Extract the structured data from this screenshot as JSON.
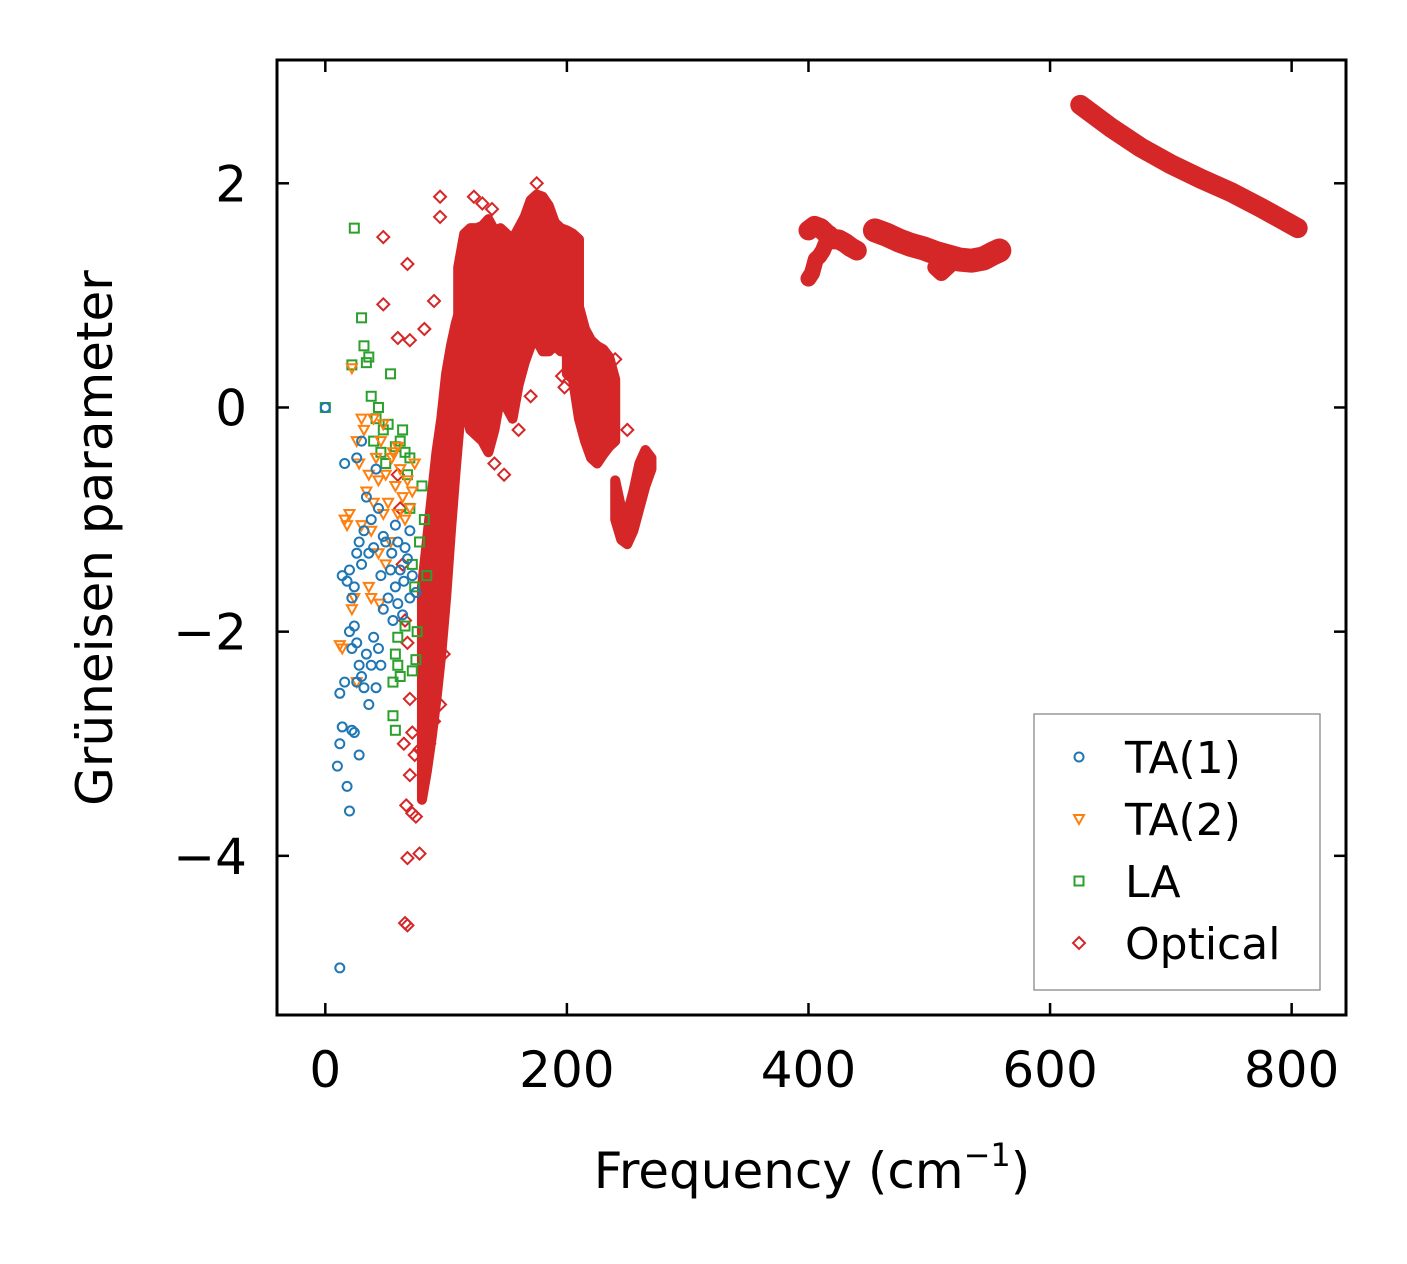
{
  "chart_data": {
    "type": "scatter",
    "title": "",
    "xlabel": "Frequency (cm",
    "xlabel_sup": "−1",
    "xlabel_end": ")",
    "ylabel": "Grüneisen parameter",
    "xlim": [
      -40,
      845
    ],
    "ylim": [
      -5.42,
      3.1
    ],
    "xticks": [
      0,
      200,
      400,
      600,
      800
    ],
    "yticks": [
      -4,
      -2,
      0,
      2
    ],
    "xtick_labels": [
      "0",
      "200",
      "400",
      "600",
      "800"
    ],
    "ytick_labels": [
      "−4",
      "−2",
      "0",
      "2"
    ],
    "grid": false,
    "legend_position": "lower-right",
    "series": [
      {
        "name": "TA(1)",
        "marker": "circle",
        "color": "#1f77b4",
        "points": [
          [
            0,
            0
          ],
          [
            12,
            -5.0
          ],
          [
            10,
            -3.2
          ],
          [
            12,
            -3.0
          ],
          [
            14,
            -2.85
          ],
          [
            16,
            -2.45
          ],
          [
            12,
            -2.55
          ],
          [
            18,
            -3.38
          ],
          [
            20,
            -3.6
          ],
          [
            22,
            -2.88
          ],
          [
            24,
            -2.9
          ],
          [
            26,
            -2.45
          ],
          [
            28,
            -3.1
          ],
          [
            20,
            -2.0
          ],
          [
            22,
            -2.15
          ],
          [
            24,
            -1.95
          ],
          [
            26,
            -2.1
          ],
          [
            28,
            -2.3
          ],
          [
            30,
            -2.4
          ],
          [
            32,
            -2.5
          ],
          [
            34,
            -2.2
          ],
          [
            36,
            -2.65
          ],
          [
            38,
            -2.3
          ],
          [
            40,
            -2.05
          ],
          [
            42,
            -2.5
          ],
          [
            44,
            -2.15
          ],
          [
            46,
            -2.3
          ],
          [
            48,
            -1.8
          ],
          [
            14,
            -1.5
          ],
          [
            16,
            -0.5
          ],
          [
            18,
            -1.55
          ],
          [
            20,
            -1.45
          ],
          [
            22,
            -1.7
          ],
          [
            24,
            -1.6
          ],
          [
            26,
            -1.3
          ],
          [
            28,
            -1.2
          ],
          [
            30,
            -1.4
          ],
          [
            32,
            -1.1
          ],
          [
            34,
            -0.8
          ],
          [
            36,
            -1.3
          ],
          [
            38,
            -1.0
          ],
          [
            40,
            -1.25
          ],
          [
            42,
            -0.55
          ],
          [
            44,
            -0.9
          ],
          [
            46,
            -1.5
          ],
          [
            48,
            -1.15
          ],
          [
            26,
            -0.45
          ],
          [
            30,
            -0.3
          ],
          [
            52,
            -1.7
          ],
          [
            55,
            -1.3
          ],
          [
            58,
            -1.6
          ],
          [
            60,
            -1.2
          ],
          [
            62,
            -1.45
          ],
          [
            65,
            -1.55
          ],
          [
            68,
            -1.35
          ],
          [
            70,
            -1.1
          ],
          [
            72,
            -1.5
          ],
          [
            75,
            -1.65
          ],
          [
            56,
            -1.9
          ],
          [
            60,
            -1.75
          ],
          [
            64,
            -1.85
          ],
          [
            50,
            -1.2
          ],
          [
            54,
            -1.45
          ],
          [
            58,
            -1.05
          ],
          [
            66,
            -1.25
          ],
          [
            70,
            -1.7
          ]
        ]
      },
      {
        "name": "TA(2)",
        "marker": "triangle-down",
        "color": "#ff7f0e",
        "points": [
          [
            12,
            -2.12
          ],
          [
            14,
            -2.15
          ],
          [
            22,
            0.35
          ],
          [
            22,
            -1.8
          ],
          [
            24,
            -1.7
          ],
          [
            26,
            -2.45
          ],
          [
            26,
            -0.3
          ],
          [
            28,
            -0.5
          ],
          [
            30,
            -1.05
          ],
          [
            30,
            -0.1
          ],
          [
            32,
            -0.2
          ],
          [
            34,
            -0.75
          ],
          [
            36,
            -0.6
          ],
          [
            38,
            -1.1
          ],
          [
            40,
            -0.85
          ],
          [
            42,
            -0.45
          ],
          [
            44,
            -1.3
          ],
          [
            46,
            -0.3
          ],
          [
            48,
            -0.95
          ],
          [
            50,
            -0.6
          ],
          [
            52,
            -0.85
          ],
          [
            54,
            -1.2
          ],
          [
            56,
            -0.4
          ],
          [
            58,
            -0.7
          ],
          [
            60,
            -0.95
          ],
          [
            62,
            -0.55
          ],
          [
            64,
            -0.8
          ],
          [
            66,
            -1.0
          ],
          [
            68,
            -0.65
          ],
          [
            70,
            -0.9
          ],
          [
            72,
            -0.75
          ],
          [
            74,
            -0.5
          ],
          [
            16,
            -1.0
          ],
          [
            18,
            -1.05
          ],
          [
            20,
            -0.95
          ],
          [
            40,
            -0.1
          ],
          [
            44,
            -0.65
          ],
          [
            48,
            -0.15
          ],
          [
            36,
            -1.6
          ],
          [
            38,
            -1.7
          ],
          [
            55,
            -0.45
          ],
          [
            60,
            -0.35
          ],
          [
            50,
            -1.4
          ],
          [
            45,
            -1.75
          ]
        ]
      },
      {
        "name": "LA",
        "marker": "square",
        "color": "#2ca02c",
        "points": [
          [
            0,
            0
          ],
          [
            24,
            1.6
          ],
          [
            30,
            0.8
          ],
          [
            32,
            0.55
          ],
          [
            34,
            0.4
          ],
          [
            36,
            0.45
          ],
          [
            38,
            0.1
          ],
          [
            22,
            0.38
          ],
          [
            40,
            -0.3
          ],
          [
            42,
            -0.1
          ],
          [
            44,
            0.0
          ],
          [
            46,
            -0.4
          ],
          [
            48,
            -0.2
          ],
          [
            50,
            -0.5
          ],
          [
            52,
            -0.15
          ],
          [
            54,
            0.3
          ],
          [
            56,
            -2.75
          ],
          [
            58,
            -2.88
          ],
          [
            60,
            -2.3
          ],
          [
            62,
            -2.4
          ],
          [
            56,
            -2.45
          ],
          [
            58,
            -2.2
          ],
          [
            60,
            -2.05
          ],
          [
            64,
            -0.2
          ],
          [
            66,
            -0.4
          ],
          [
            68,
            -0.6
          ],
          [
            70,
            -0.9
          ],
          [
            72,
            -1.4
          ],
          [
            74,
            -1.6
          ],
          [
            76,
            -2.0
          ],
          [
            78,
            -1.2
          ],
          [
            80,
            -0.7
          ],
          [
            82,
            -1.0
          ],
          [
            84,
            -1.5
          ],
          [
            75,
            -2.25
          ],
          [
            72,
            -2.35
          ],
          [
            66,
            -1.95
          ],
          [
            62,
            -0.3
          ],
          [
            58,
            -0.35
          ],
          [
            70,
            -0.45
          ]
        ]
      },
      {
        "name": "Optical",
        "marker": "diamond",
        "color": "#d62728",
        "points": [
          [
            48,
            1.52
          ],
          [
            68,
            1.28
          ],
          [
            48,
            0.92
          ],
          [
            95,
            1.88
          ],
          [
            95,
            1.7
          ],
          [
            123,
            1.88
          ],
          [
            130,
            1.82
          ],
          [
            138,
            1.77
          ],
          [
            175,
            2.0
          ],
          [
            175,
            1.82
          ],
          [
            60,
            0.62
          ],
          [
            70,
            0.6
          ],
          [
            82,
            0.7
          ],
          [
            90,
            0.95
          ],
          [
            65,
            -3.0
          ],
          [
            67,
            -3.55
          ],
          [
            70,
            -3.28
          ],
          [
            72,
            -3.62
          ],
          [
            75,
            -3.65
          ],
          [
            78,
            -3.98
          ],
          [
            68,
            -4.02
          ],
          [
            66,
            -4.6
          ],
          [
            68,
            -4.62
          ],
          [
            95,
            -2.65
          ],
          [
            98,
            -2.2
          ],
          [
            60,
            -0.6
          ],
          [
            62,
            -0.9
          ],
          [
            64,
            -1.4
          ],
          [
            66,
            -1.9
          ],
          [
            68,
            -2.1
          ],
          [
            70,
            -2.6
          ],
          [
            72,
            -2.9
          ],
          [
            74,
            -3.1
          ],
          [
            78,
            -3.05
          ],
          [
            82,
            -3.1
          ],
          [
            86,
            -3.0
          ],
          [
            90,
            -2.8
          ],
          [
            140,
            -0.5
          ],
          [
            148,
            -0.6
          ],
          [
            160,
            -0.2
          ],
          [
            170,
            0.1
          ],
          [
            196,
            0.28
          ],
          [
            198,
            0.18
          ],
          [
            210,
            0.6
          ],
          [
            215,
            0.55
          ],
          [
            225,
            0.4
          ],
          [
            240,
            0.43
          ],
          [
            250,
            -0.2
          ],
          [
            260,
            -0.6
          ]
        ]
      }
    ],
    "optical_bands": [
      {
        "x": [
          80,
          84,
          88,
          92,
          96,
          100,
          104,
          108,
          112,
          115
        ],
        "lo": [
          -3.5,
          -3.25,
          -2.95,
          -2.6,
          -2.2,
          -1.7,
          -1.1,
          -0.55,
          -0.05,
          0.25
        ],
        "hi": [
          -1.6,
          -1.2,
          -0.8,
          -0.4,
          -0.1,
          0.3,
          0.55,
          0.75,
          0.9,
          1.05
        ]
      },
      {
        "x": [
          110,
          115,
          120,
          125,
          130,
          135,
          140,
          145,
          150,
          155,
          160,
          165,
          170,
          175,
          180,
          185,
          190,
          195,
          200,
          205,
          210
        ],
        "lo": [
          -0.1,
          0.05,
          -0.2,
          -0.25,
          -0.3,
          -0.4,
          -0.2,
          0.1,
          0.0,
          -0.1,
          0.2,
          0.4,
          0.55,
          0.6,
          0.5,
          0.5,
          0.55,
          0.5,
          0.5,
          0.6,
          0.5
        ],
        "hi": [
          1.25,
          1.55,
          1.6,
          1.6,
          1.62,
          1.68,
          1.58,
          1.6,
          1.55,
          1.5,
          1.6,
          1.7,
          1.85,
          1.9,
          1.88,
          1.8,
          1.65,
          1.6,
          1.58,
          1.55,
          1.5
        ]
      },
      {
        "x": [
          200,
          205,
          210,
          215,
          220,
          225,
          230,
          235,
          240
        ],
        "lo": [
          0.3,
          0.25,
          -0.1,
          -0.3,
          -0.45,
          -0.5,
          -0.42,
          -0.35,
          -0.3
        ],
        "hi": [
          1.35,
          1.15,
          0.9,
          0.7,
          0.6,
          0.55,
          0.52,
          0.45,
          0.25
        ]
      },
      {
        "x": [
          240,
          245,
          250,
          255,
          260,
          265,
          270
        ],
        "lo": [
          -1.0,
          -1.18,
          -1.22,
          -1.1,
          -0.9,
          -0.7,
          -0.55
        ],
        "hi": [
          -0.65,
          -0.9,
          -0.95,
          -0.75,
          -0.5,
          -0.38,
          -0.45
        ]
      }
    ],
    "optical_curves": [
      {
        "x": [
          400,
          405,
          410,
          415,
          420,
          425,
          430,
          435,
          440
        ],
        "y": [
          1.58,
          1.62,
          1.6,
          1.55,
          1.5,
          1.5,
          1.47,
          1.43,
          1.4
        ],
        "width": 20
      },
      {
        "x": [
          400,
          403,
          406,
          409,
          412,
          415,
          418
        ],
        "y": [
          1.15,
          1.2,
          1.32,
          1.35,
          1.4,
          1.48,
          1.55
        ],
        "width": 16
      },
      {
        "x": [
          455,
          465,
          475,
          485,
          495,
          505,
          515,
          525,
          535,
          545,
          552,
          558
        ],
        "y": [
          1.58,
          1.54,
          1.49,
          1.45,
          1.42,
          1.38,
          1.35,
          1.32,
          1.31,
          1.33,
          1.37,
          1.4
        ],
        "width": 24
      },
      {
        "x": [
          505,
          510,
          515,
          520
        ],
        "y": [
          1.25,
          1.2,
          1.25,
          1.3
        ],
        "width": 16
      },
      {
        "x": [
          625,
          650,
          675,
          700,
          725,
          750,
          775,
          805
        ],
        "y": [
          2.7,
          2.5,
          2.32,
          2.17,
          2.04,
          1.92,
          1.78,
          1.6
        ],
        "width": 20
      }
    ]
  }
}
